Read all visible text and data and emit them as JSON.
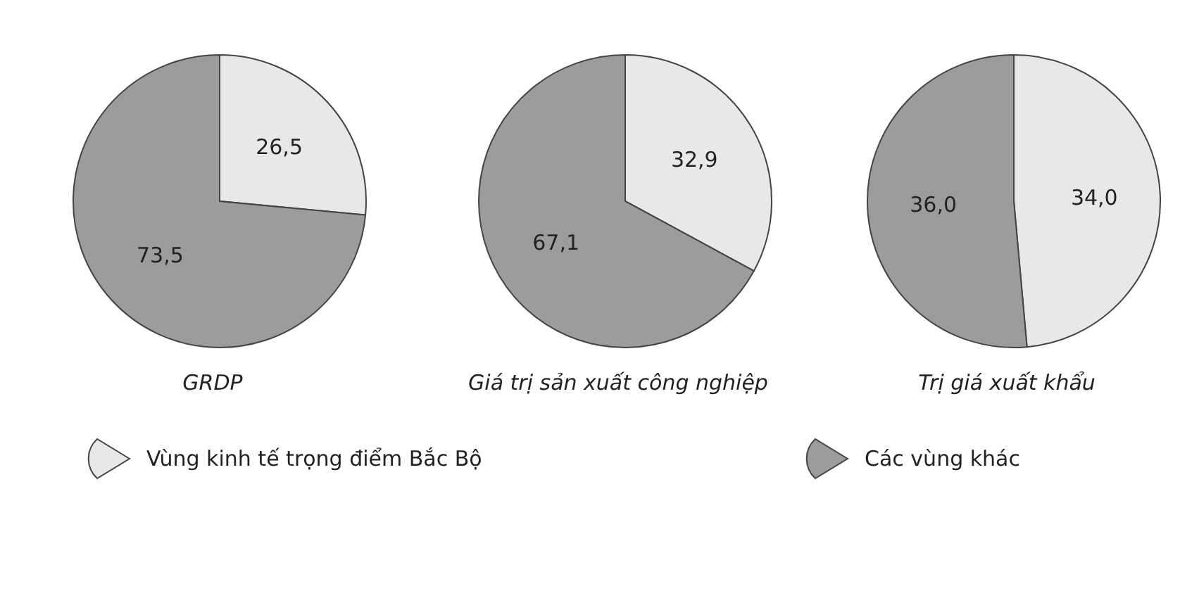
{
  "chart_data": [
    {
      "type": "pie",
      "title": "GRDP",
      "categories": [
        "Vùng kinh tế trọng điểm Bắc Bộ",
        "Các vùng khác"
      ],
      "values": [
        26.5,
        73.5
      ],
      "value_labels": [
        "26,5",
        "73,5"
      ],
      "colors": [
        "#e8e8e8",
        "#9c9c9c"
      ],
      "legend": "bottom"
    },
    {
      "type": "pie",
      "title": "Giá trị sản xuất công nghiệp",
      "values": [
        32.9,
        67.1
      ],
      "value_labels": [
        "32,9",
        "67,1"
      ],
      "colors": [
        "#e8e8e8",
        "#9c9c9c"
      ]
    },
    {
      "type": "pie",
      "title": "Trị giá xuất khẩu",
      "values": [
        34.0,
        36.0
      ],
      "value_labels": [
        "34,0",
        "36,0"
      ],
      "colors": [
        "#e8e8e8",
        "#9c9c9c"
      ]
    }
  ]
}
